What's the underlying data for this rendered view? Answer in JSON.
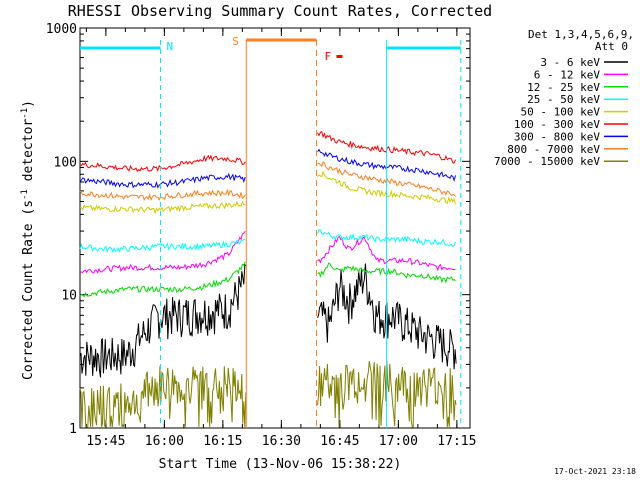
{
  "title": "RHESSI Observing Summary Count Rates, Corrected",
  "xlabel": "Start Time (13-Nov-06 15:38:22)",
  "ylabel_main": "Corrected Count Rate (s",
  "ylabel_sup": "-1",
  "ylabel_mid": " detector",
  "ylabel_end": ")",
  "footer_date": "17-Oct-2021 23:18",
  "legend_header": "Det 1,3,4,5,6,9,",
  "legend_att": "Att 0",
  "flags": {
    "night": "N",
    "saa": "S",
    "flare": "F"
  },
  "chart_data": {
    "type": "line",
    "y_scale": "log",
    "ylim": [
      1,
      1000
    ],
    "yticks": [
      "1",
      "10",
      "100",
      "1000"
    ],
    "xticks": [
      "15:45",
      "16:00",
      "16:15",
      "16:30",
      "16:45",
      "17:00",
      "17:15"
    ],
    "xlim_minutes_after_start": [
      0,
      100
    ],
    "gaps": [
      {
        "label": "S",
        "from": "16:21",
        "to": "16:39",
        "color": "#ff7f1f"
      }
    ],
    "night_intervals": [
      {
        "from": "15:38",
        "to": "15:59"
      },
      {
        "from": "16:57",
        "to": "17:16"
      }
    ],
    "series": [
      {
        "name": "3 - 6 keV",
        "color": "#000000",
        "values": [
          3.5,
          3.5,
          3.6,
          7,
          7.2,
          7.5,
          8,
          13,
          7,
          6,
          12,
          9,
          14,
          7,
          7,
          6,
          5,
          4.5,
          4
        ]
      },
      {
        "name": "6 - 12 keV",
        "color": "#ff00ff",
        "values": [
          15,
          15.5,
          16,
          16,
          16,
          17,
          20,
          30,
          18,
          22,
          27,
          22,
          27,
          18,
          18,
          18,
          17,
          16,
          16
        ]
      },
      {
        "name": "12 - 25 keV",
        "color": "#00dd00",
        "values": [
          10,
          10.5,
          11,
          11,
          11,
          11.5,
          13,
          17,
          14,
          17,
          15,
          16,
          15,
          15,
          15,
          14,
          14,
          13,
          13
        ]
      },
      {
        "name": "25 - 50 keV",
        "color": "#00ffff",
        "values": [
          23,
          22,
          22,
          23,
          23,
          23,
          24,
          25,
          30,
          28,
          27,
          27,
          27,
          26,
          26,
          26,
          25,
          25,
          24
        ]
      },
      {
        "name": "50 - 100 keV",
        "color": "#cccc00",
        "values": [
          45,
          44,
          44,
          43,
          45,
          46,
          47,
          48,
          82,
          75,
          70,
          64,
          60,
          58,
          57,
          55,
          54,
          52,
          50
        ]
      },
      {
        "name": "100 - 300 keV",
        "color": "#ff0000",
        "values": [
          95,
          92,
          88,
          88,
          95,
          105,
          105,
          98,
          165,
          150,
          140,
          135,
          128,
          125,
          122,
          118,
          115,
          110,
          100
        ]
      },
      {
        "name": "300 - 800 keV",
        "color": "#0000ff",
        "values": [
          73,
          70,
          67,
          67,
          70,
          75,
          77,
          73,
          120,
          110,
          105,
          100,
          95,
          92,
          90,
          88,
          85,
          80,
          75
        ]
      },
      {
        "name": "800 - 7000 keV",
        "color": "#ff7f1f",
        "values": [
          58,
          56,
          54,
          54,
          56,
          58,
          58,
          55,
          98,
          90,
          85,
          80,
          76,
          73,
          70,
          67,
          64,
          60,
          57
        ]
      },
      {
        "name": "7000 - 15000 keV",
        "color": "#808000",
        "values": [
          1.5,
          1.6,
          1.6,
          2.2,
          2.2,
          2.2,
          2.2,
          2.0,
          2.3,
          2.3,
          2.3,
          2.3,
          2.6,
          2.5,
          2.3,
          2.2,
          2.2,
          2.2,
          2.2
        ]
      }
    ],
    "x_samples_minutes": [
      0,
      6,
      12,
      20,
      26,
      32,
      38,
      42.5,
      61.5,
      64,
      66.5,
      69,
      73,
      76,
      80,
      84,
      88,
      92,
      96
    ]
  }
}
